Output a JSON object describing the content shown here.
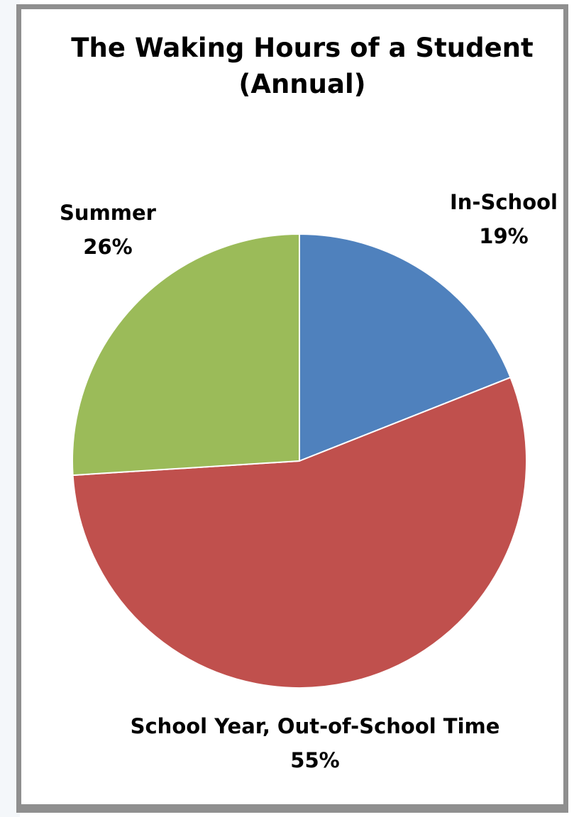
{
  "chart_data": {
    "type": "pie",
    "title": "The Waking Hours of a Student",
    "subtitle": "(Annual)",
    "categories": [
      "In-School",
      "School Year, Out-of-School Time",
      "Summer"
    ],
    "values": [
      19,
      55,
      26
    ],
    "value_labels": [
      "19%",
      "55%",
      "26%"
    ],
    "colors": [
      "#4f81bd",
      "#c0504d",
      "#9bbb59"
    ],
    "start_angle_deg": 0,
    "direction": "clockwise",
    "legend": "none",
    "data_labels": "outside"
  },
  "colors": {
    "frame_border": "#8f8f8f",
    "background": "#ffffff",
    "slice_edge": "#ffffff"
  }
}
